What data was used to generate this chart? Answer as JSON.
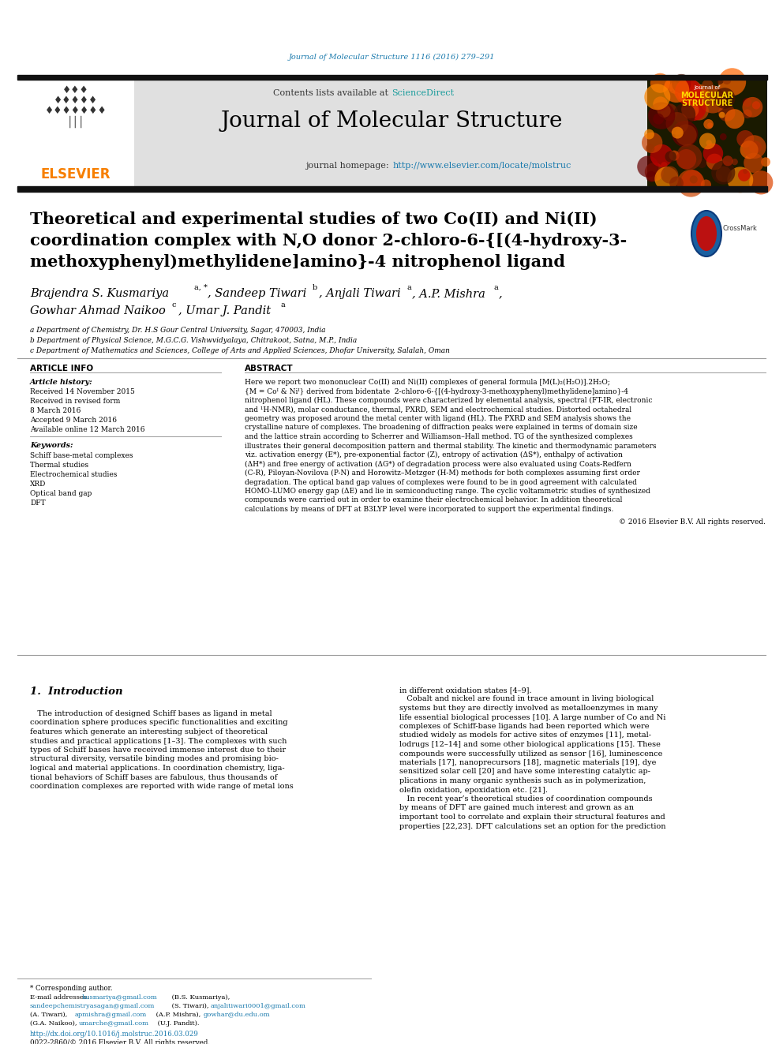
{
  "page_width": 9.92,
  "page_height": 13.23,
  "bg_color": "#ffffff",
  "journal_ref": "Journal of Molecular Structure 1116 (2016) 279–291",
  "journal_ref_color": "#1a7aad",
  "header_bg": "#e0e0e0",
  "sciencedirect_color": "#1a9c9c",
  "journal_title": "Journal of Molecular Structure",
  "homepage_url": "http://www.elsevier.com/locate/molstruc",
  "homepage_url_color": "#1a7aad",
  "elsevier_color": "#f77f00",
  "paper_title_line1": "Theoretical and experimental studies of two Co(II) and Ni(II)",
  "paper_title_line2": "coordination complex with N,O donor 2-chloro-6-{[(4-hydroxy-3-",
  "paper_title_line3": "methoxyphenyl)methylidene]amino}-4 nitrophenol ligand",
  "affil_a": "a Department of Chemistry, Dr. H.S Gour Central University, Sagar, 470003, India",
  "affil_b": "b Department of Physical Science, M.G.C.G. Vishwvidyalaya, Chitrakoot, Satna, M.P., India",
  "affil_c": "c Department of Mathematics and Sciences, College of Arts and Applied Sciences, Dhofar University, Salalah, Oman",
  "article_info_title": "ARTICLE INFO",
  "abstract_title": "ABSTRACT",
  "article_history_label": "Article history:",
  "received_text": "Received 14 November 2015",
  "revised_text": "Received in revised form",
  "revised_date": "8 March 2016",
  "accepted_text": "Accepted 9 March 2016",
  "available_text": "Available online 12 March 2016",
  "keywords_label": "Keywords:",
  "keywords": [
    "Schiff base-metal complexes",
    "Thermal studies",
    "Electrochemical studies",
    "XRD",
    "Optical band gap",
    "DFT"
  ],
  "copyright_text": "© 2016 Elsevier B.V. All rights reserved.",
  "section1_title": "1.  Introduction",
  "footer_doi": "http://dx.doi.org/10.1016/j.molstruc.2016.03.029",
  "footer_issn": "0022-2860/© 2016 Elsevier B.V. All rights reserved.",
  "black_bar_color": "#111111",
  "text_color": "#000000",
  "link_color": "#1a7aad"
}
